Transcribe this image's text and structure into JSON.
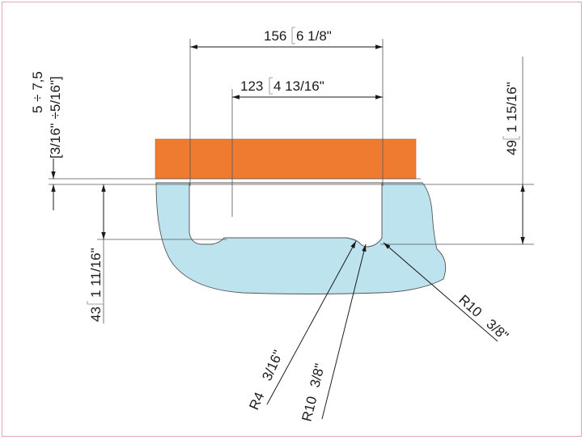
{
  "colors": {
    "plate": "#ef7b30",
    "body": "#bde3ef",
    "outline": "#555555",
    "frame": "#e8a6b2"
  },
  "dimensions": {
    "width_outer": {
      "value": "156",
      "inch": "6 1/8\""
    },
    "width_inner": {
      "value": "123",
      "inch": "4 13/16\""
    },
    "gap": {
      "value": "5 ÷ 7,5",
      "inch": "[3/16\" ÷5/16\"]"
    },
    "depth_total": {
      "value": "49",
      "inch": "1 15/16\""
    },
    "depth_groove": {
      "value": "43",
      "inch": "1 11/16\""
    },
    "radius_small": {
      "value": "R4",
      "inch": "3/16\""
    },
    "radius_mid": {
      "value": "R10",
      "inch": "3/8\""
    },
    "radius_right": {
      "value": "R10",
      "inch": "3/8\""
    }
  }
}
